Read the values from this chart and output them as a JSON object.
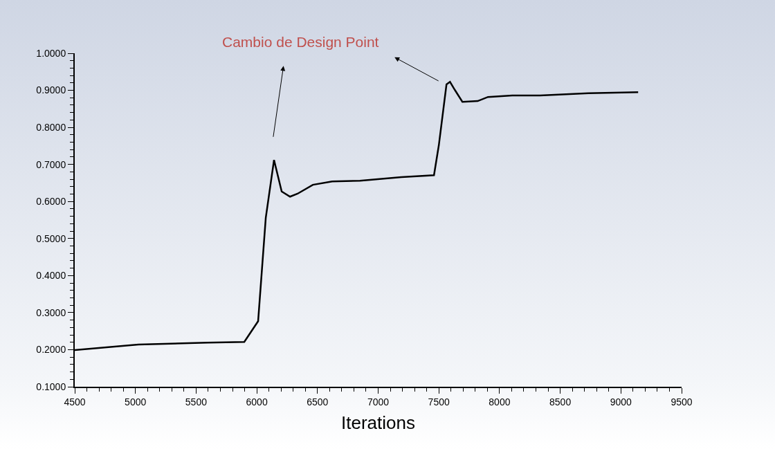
{
  "chart_data": {
    "type": "line",
    "xlabel": "Iterations",
    "annotations": [
      "Cambio de Design Point"
    ],
    "x": [
      4500,
      5025,
      5595,
      5897,
      6011,
      6074,
      6142,
      6205,
      6274,
      6336,
      6462,
      6621,
      6850,
      7192,
      7460,
      7500,
      7563,
      7592,
      7632,
      7694,
      7820,
      7905,
      8105,
      8333,
      8732,
      9142
    ],
    "series": [
      {
        "color": "#000000",
        "values": [
          0.199,
          0.214,
          0.219,
          0.221,
          0.277,
          0.556,
          0.712,
          0.627,
          0.613,
          0.621,
          0.645,
          0.654,
          0.656,
          0.666,
          0.671,
          0.752,
          0.916,
          0.923,
          0.901,
          0.869,
          0.871,
          0.882,
          0.886,
          0.886,
          0.892,
          0.895
        ]
      }
    ],
    "xlim": [
      4500,
      9500
    ],
    "xticks": [
      4500,
      5000,
      5500,
      6000,
      6500,
      7000,
      7500,
      8000,
      8500,
      9000,
      9500
    ],
    "ylim": [
      0.1,
      1.0
    ],
    "yticks": [
      {
        "value": 0.1,
        "label": "0.1000"
      },
      {
        "value": 0.2,
        "label": "0.2000"
      },
      {
        "value": 0.3,
        "label": "0.3000"
      },
      {
        "value": 0.4,
        "label": "0.4000"
      },
      {
        "value": 0.5,
        "label": "0.5000"
      },
      {
        "value": 0.6,
        "label": "0.6000"
      },
      {
        "value": 0.7,
        "label": "0.7000"
      },
      {
        "value": 0.8,
        "label": "0.8000"
      },
      {
        "value": 0.9,
        "label": "0.9000"
      },
      {
        "value": 1.0,
        "label": "1.0000"
      }
    ],
    "grid": false,
    "marker": "none",
    "line_style": "solid"
  }
}
